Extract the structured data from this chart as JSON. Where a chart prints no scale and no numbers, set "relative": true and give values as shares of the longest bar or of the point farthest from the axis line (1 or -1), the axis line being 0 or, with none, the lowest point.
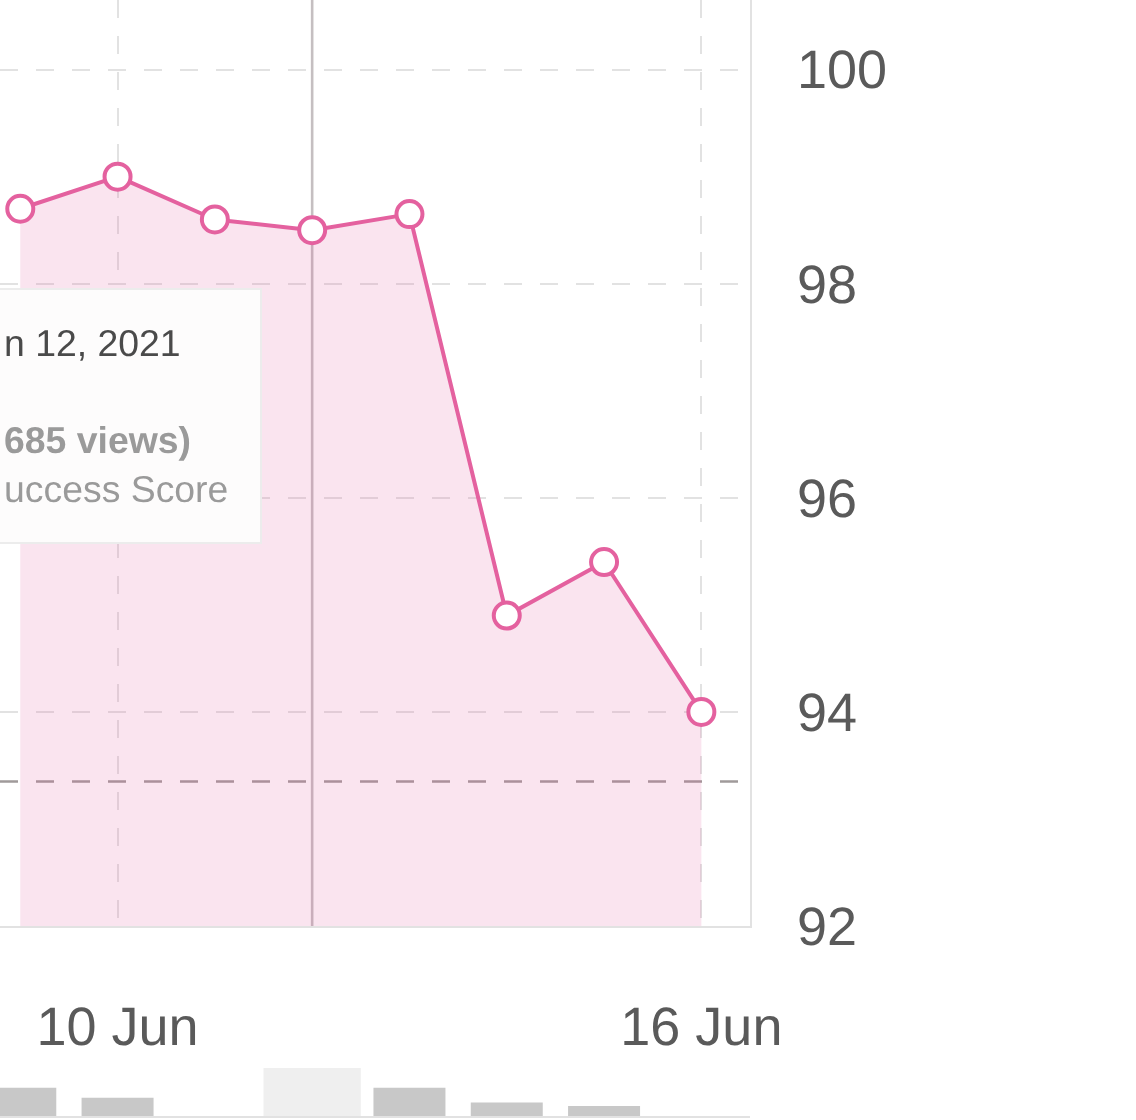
{
  "chart_data": [
    {
      "type": "area",
      "x": [
        "2021-06-09",
        "2021-06-10",
        "2021-06-11",
        "2021-06-12",
        "2021-06-13",
        "2021-06-14",
        "2021-06-15",
        "2021-06-16"
      ],
      "values": [
        98.7,
        99.0,
        98.6,
        98.5,
        98.65,
        94.9,
        95.4,
        94.0
      ],
      "color": "#e4619f",
      "marker": "circle",
      "xlim": [
        "2021-06-08T19:00",
        "2021-06-16T12:00"
      ],
      "ylim": [
        92,
        100.65
      ],
      "xticks": [
        {
          "value": "2021-06-10",
          "label": "10 Jun"
        },
        {
          "value": "2021-06-16",
          "label": "16 Jun"
        }
      ],
      "yticks": [
        92,
        94,
        96,
        98,
        100
      ],
      "grid": true,
      "ref_lines": [
        {
          "axis": "x",
          "value": "2021-06-12",
          "color": "#c5bfc1",
          "line_style": "solid"
        },
        {
          "axis": "y",
          "value": 93.35,
          "color": "#a09a9a",
          "line_style": "dashed"
        }
      ],
      "annotations": [
        "n 12, 2021",
        "685 views)",
        "uccess Score"
      ]
    },
    {
      "type": "bar",
      "x": [
        "2021-06-09",
        "2021-06-10",
        "2021-06-13",
        "2021-06-14",
        "2021-06-15"
      ],
      "values": [
        1,
        0.65,
        1,
        0.48,
        0.35
      ],
      "color": "#c8c8c8",
      "relative": true,
      "xlim": [
        "2021-06-08T19:00",
        "2021-06-16T12:00"
      ],
      "bands": [
        {
          "axis": "x",
          "from": "2021-06-11T12:00",
          "to": "2021-06-12T12:00",
          "color": "#efefef"
        }
      ]
    }
  ]
}
